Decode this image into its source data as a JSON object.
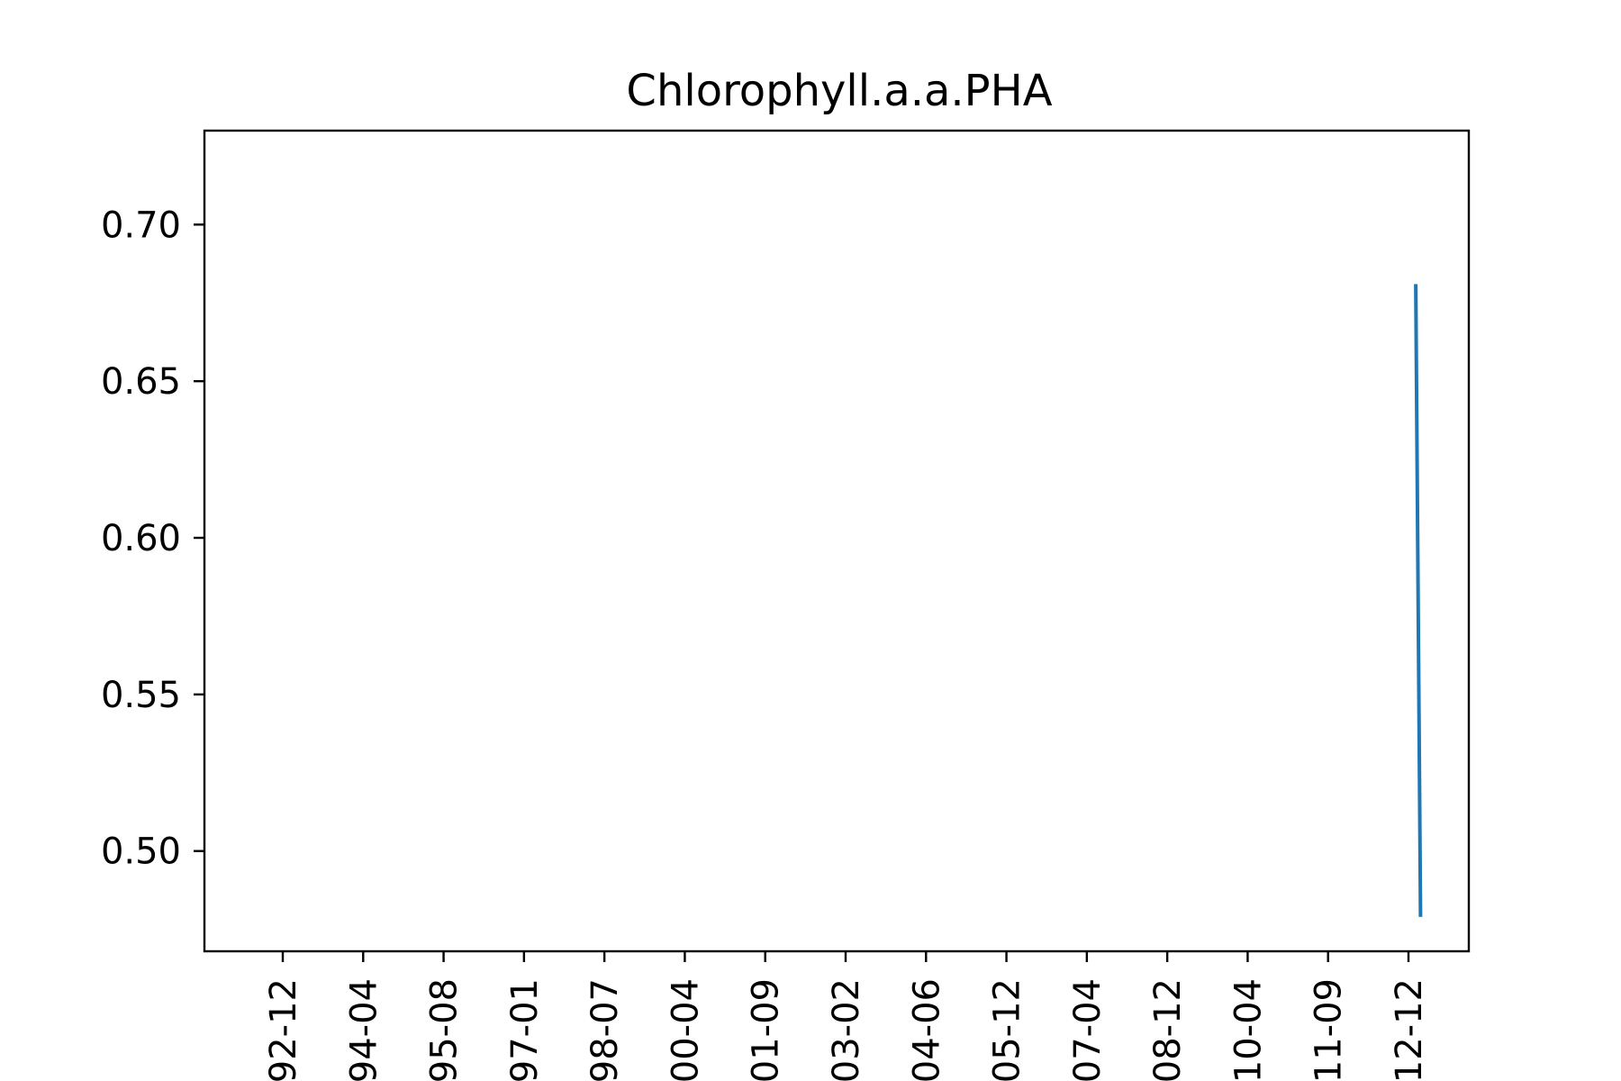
{
  "chart_data": {
    "type": "line",
    "title": "Chlorophyll.a.a.PHA",
    "xlabel": "",
    "ylabel": "",
    "x_tick_labels": [
      "92-12",
      "94-04",
      "95-08",
      "97-01",
      "98-07",
      "00-04",
      "01-09",
      "03-02",
      "04-06",
      "05-12",
      "07-04",
      "08-12",
      "10-04",
      "11-09",
      "12-12"
    ],
    "y_tick_labels": [
      "0.70",
      "0.65",
      "0.60",
      "0.55",
      "0.50"
    ],
    "y_ticks": [
      0.7,
      0.65,
      0.6,
      0.55,
      0.5
    ],
    "ylim": [
      0.468,
      0.73
    ],
    "xlim": [
      "1991-12",
      "2013-10"
    ],
    "grid": false,
    "legend": "none",
    "series": [
      {
        "x": [
          "2012-11",
          "2012-12"
        ],
        "values": [
          0.681,
          0.479
        ],
        "color": "#1f77b4"
      }
    ]
  }
}
